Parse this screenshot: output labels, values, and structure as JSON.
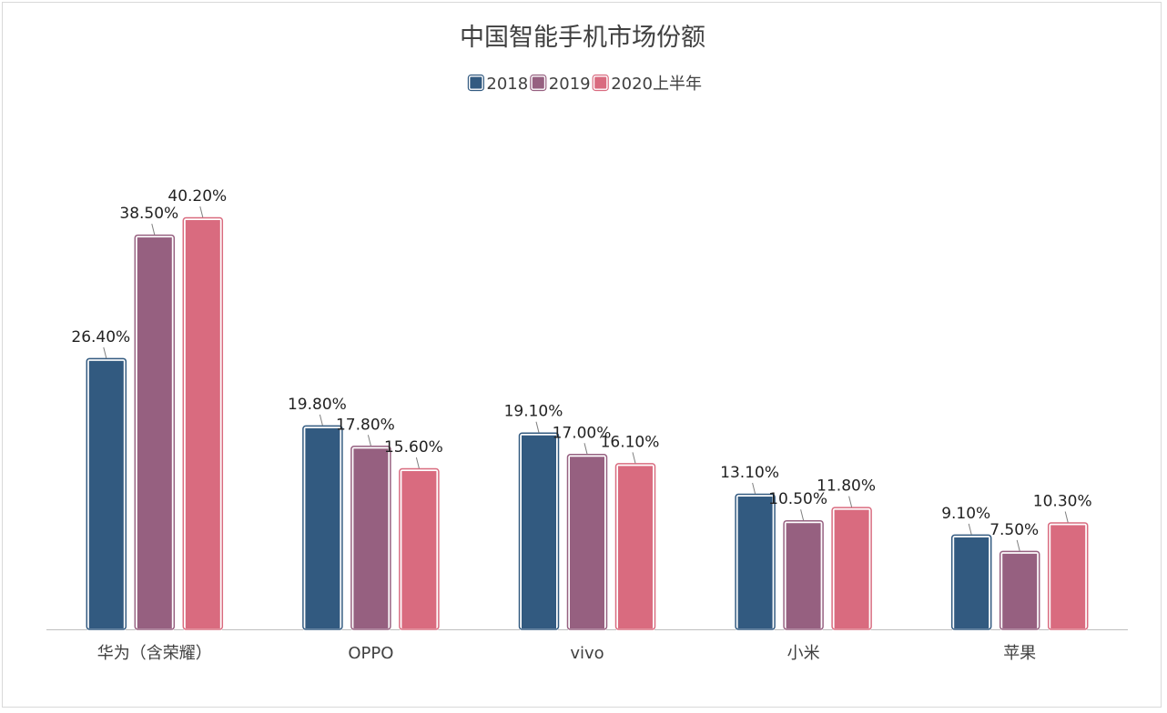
{
  "chart_data": {
    "type": "bar",
    "title": "中国智能手机市场份额",
    "xlabel": "",
    "ylabel": "",
    "categories": [
      "华为（含荣耀）",
      "OPPO",
      "vivo",
      "小米",
      "苹果"
    ],
    "series": [
      {
        "name": "2018",
        "color": "#325a80",
        "values": [
          26.4,
          19.8,
          19.1,
          13.1,
          9.1
        ],
        "labels": [
          "26.40%",
          "19.80%",
          "19.10%",
          "13.10%",
          "9.10%"
        ]
      },
      {
        "name": "2019",
        "color": "#966080",
        "values": [
          38.5,
          17.8,
          17.0,
          10.5,
          7.5
        ],
        "labels": [
          "38.50%",
          "17.80%",
          "17.00%",
          "10.50%",
          "7.50%"
        ]
      },
      {
        "name": "2020上半年",
        "color": "#d96b7f",
        "values": [
          40.2,
          15.6,
          16.1,
          11.8,
          10.3
        ],
        "labels": [
          "40.20%",
          "15.60%",
          "16.10%",
          "11.80%",
          "10.30%"
        ]
      }
    ],
    "ylim": [
      0,
      40.2
    ],
    "legend_position": "top-center",
    "grid": false,
    "y_axis_visible": false
  }
}
